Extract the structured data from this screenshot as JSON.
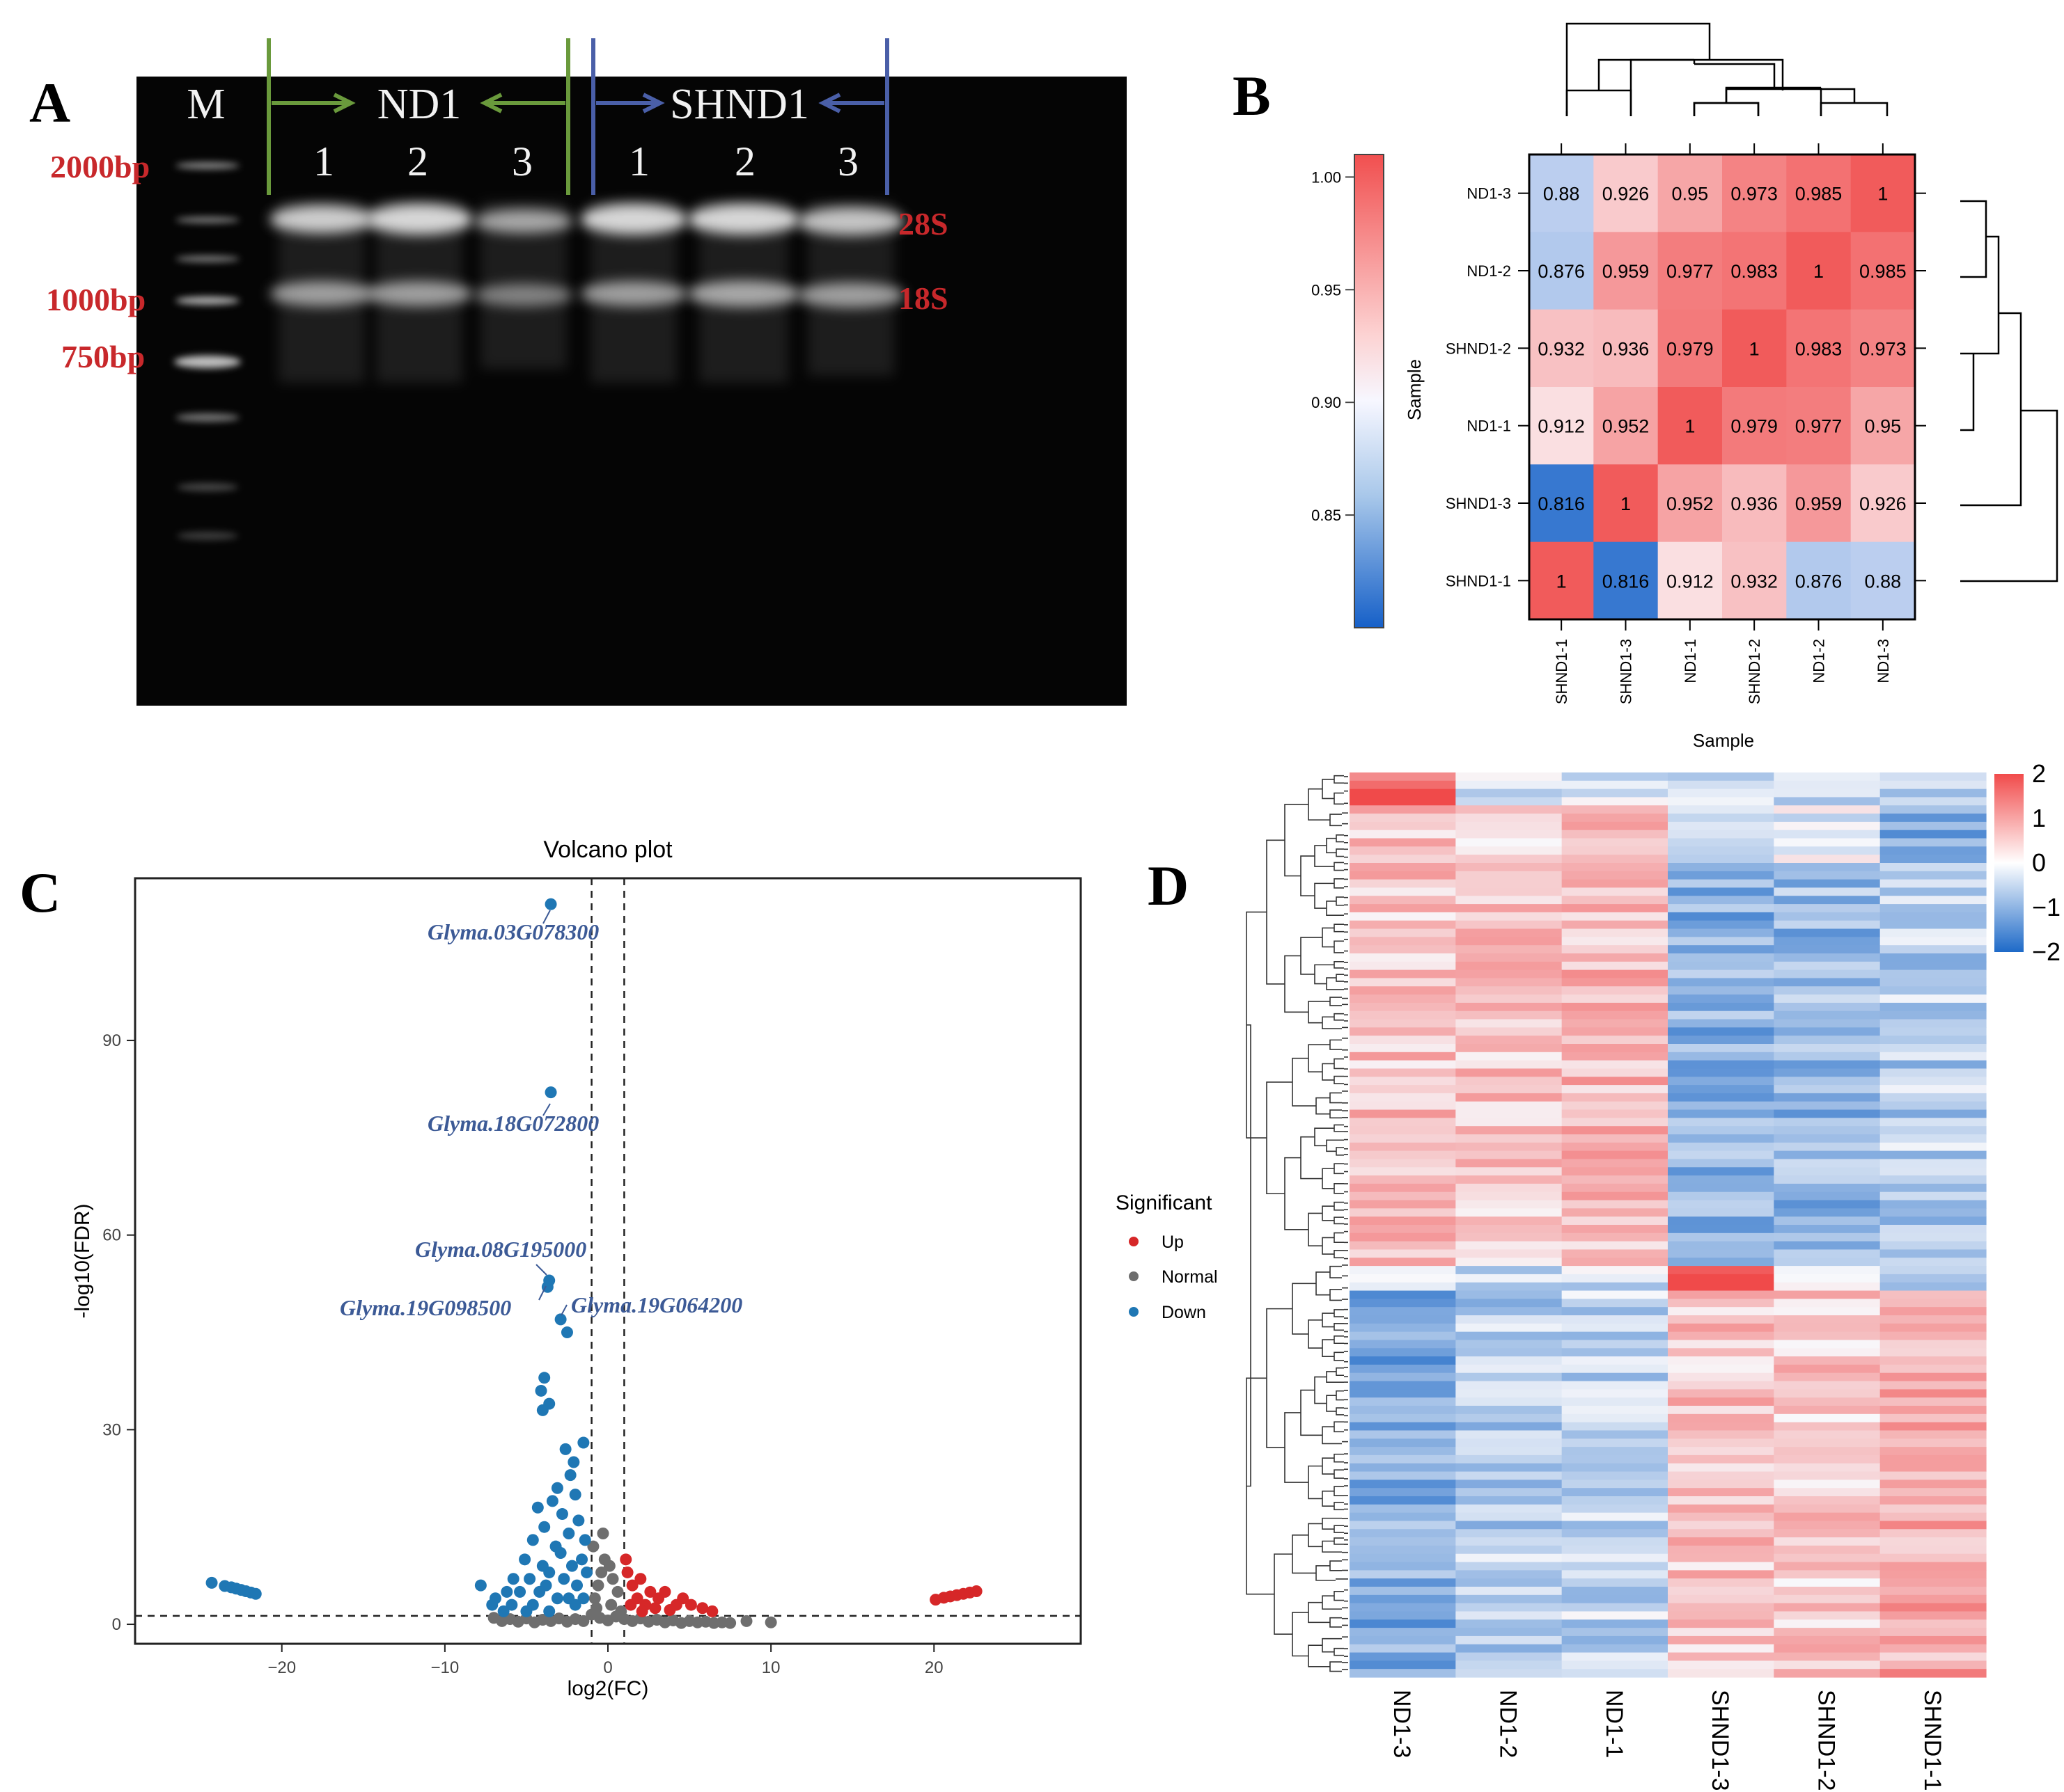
{
  "panel_labels": {
    "a": "A",
    "b": "B",
    "c": "C",
    "d": "D"
  },
  "panel_a": {
    "lane_m": "M",
    "group1": "ND1",
    "group2": "SHND1",
    "lanes": [
      "1",
      "2",
      "3",
      "1",
      "2",
      "3"
    ],
    "ladder": [
      "2000bp",
      "1000bp",
      "750bp"
    ],
    "bands": [
      "28S",
      "18S"
    ],
    "colors": {
      "group1_arrow": "#6a9a3c",
      "group2_arrow": "#4a5fa8",
      "marker_text": "#c8282b"
    }
  },
  "panel_b": {
    "rows": [
      "ND1-3",
      "ND1-2",
      "SHND1-2",
      "ND1-1",
      "SHND1-3",
      "SHND1-1"
    ],
    "cols": [
      "SHND1-1",
      "SHND1-3",
      "ND1-1",
      "SHND1-2",
      "ND1-2",
      "ND1-3"
    ],
    "matrix": [
      [
        "0.88",
        "0.926",
        "0.95",
        "0.973",
        "0.985",
        "1"
      ],
      [
        "0.876",
        "0.959",
        "0.977",
        "0.983",
        "1",
        "0.985"
      ],
      [
        "0.932",
        "0.936",
        "0.979",
        "1",
        "0.983",
        "0.973"
      ],
      [
        "0.912",
        "0.952",
        "1",
        "0.979",
        "0.977",
        "0.95"
      ],
      [
        "0.816",
        "1",
        "0.952",
        "0.936",
        "0.959",
        "0.926"
      ],
      [
        "1",
        "0.816",
        "0.912",
        "0.932",
        "0.876",
        "0.88"
      ]
    ],
    "colorbar_ticks": [
      "1.00",
      "0.95",
      "0.90",
      "0.85"
    ],
    "colorbar_range": [
      0.8,
      1.01
    ],
    "xlabel": "Sample",
    "ylabel": "Sample"
  },
  "panel_c": {
    "title": "Volcano plot",
    "xlabel": "log2(FC)",
    "ylabel": "-log10(FDR)",
    "xticks": [
      "−20",
      "−10",
      "0",
      "10",
      "20"
    ],
    "yticks": [
      "0",
      "30",
      "60",
      "90"
    ],
    "legend_title": "Significant",
    "legend": [
      "Up",
      "Normal",
      "Down"
    ],
    "colors": {
      "up": "#d62728",
      "normal": "#6e6e6e",
      "down": "#1f77b4",
      "gene_label": "#3c5a96"
    },
    "genes": [
      "Glyma.03G078300",
      "Glyma.18G072800",
      "Glyma.08G195000",
      "Glyma.19G098500",
      "Glyma.19G064200"
    ]
  },
  "panel_d": {
    "columns": [
      "ND1-3",
      "ND1-2",
      "ND1-1",
      "SHND1-3",
      "SHND1-2",
      "SHND1-1"
    ],
    "scale_ticks": [
      "2",
      "1",
      "0",
      "−1",
      "−2"
    ]
  },
  "chart_data": [
    {
      "type": "heatmap",
      "title": "",
      "xlabel": "Sample",
      "ylabel": "Sample",
      "x": [
        "SHND1-1",
        "SHND1-3",
        "ND1-1",
        "SHND1-2",
        "ND1-2",
        "ND1-3"
      ],
      "y": [
        "ND1-3",
        "ND1-2",
        "SHND1-2",
        "ND1-1",
        "SHND1-3",
        "SHND1-1"
      ],
      "values": [
        [
          0.88,
          0.926,
          0.95,
          0.973,
          0.985,
          1
        ],
        [
          0.876,
          0.959,
          0.977,
          0.983,
          1,
          0.985
        ],
        [
          0.932,
          0.936,
          0.979,
          1,
          0.983,
          0.973
        ],
        [
          0.912,
          0.952,
          1,
          0.979,
          0.977,
          0.95
        ],
        [
          0.816,
          1,
          0.952,
          0.936,
          0.959,
          0.926
        ],
        [
          1,
          0.816,
          0.912,
          0.932,
          0.876,
          0.88
        ]
      ]
    },
    {
      "type": "scatter",
      "title": "Volcano plot",
      "xlabel": "log2(FC)",
      "ylabel": "-log10(FDR)",
      "xlim": [
        -29,
        29
      ],
      "ylim": [
        -3,
        115
      ],
      "thresholds": {
        "x": [
          -1,
          1
        ],
        "y": 1.3
      },
      "series": [
        {
          "name": "Down",
          "points": [
            [
              -24.3,
              6.4
            ],
            [
              -23.5,
              5.9
            ],
            [
              -23.1,
              5.7
            ],
            [
              -22.8,
              5.5
            ],
            [
              -22.5,
              5.3
            ],
            [
              -22.2,
              5.1
            ],
            [
              -21.9,
              4.9
            ],
            [
              -21.6,
              4.7
            ],
            [
              -3.5,
              111
            ],
            [
              -3.5,
              82
            ],
            [
              -3.6,
              53
            ],
            [
              -3.7,
              52
            ],
            [
              -2.9,
              47
            ],
            [
              -2.5,
              45
            ],
            [
              -3.9,
              38
            ],
            [
              -4.1,
              36
            ],
            [
              -3.6,
              34
            ],
            [
              -4.0,
              33
            ],
            [
              -2.6,
              27
            ],
            [
              -1.5,
              28
            ],
            [
              -2.1,
              25
            ],
            [
              -2.3,
              23
            ],
            [
              -3.1,
              21
            ],
            [
              -2.0,
              20
            ],
            [
              -3.4,
              19
            ],
            [
              -4.3,
              18
            ],
            [
              -2.8,
              17
            ],
            [
              -1.8,
              16
            ],
            [
              -3.9,
              15
            ],
            [
              -2.4,
              14
            ],
            [
              -4.6,
              13
            ],
            [
              -1.4,
              13
            ],
            [
              -3.2,
              12
            ],
            [
              -2.9,
              11
            ],
            [
              -5.1,
              10
            ],
            [
              -1.6,
              10
            ],
            [
              -4.0,
              9
            ],
            [
              -2.2,
              9
            ],
            [
              -3.6,
              8
            ],
            [
              -5.8,
              7
            ],
            [
              -1.3,
              8
            ],
            [
              -4.8,
              7
            ],
            [
              -2.7,
              7
            ],
            [
              -6.2,
              5
            ],
            [
              -3.8,
              6
            ],
            [
              -1.9,
              6
            ],
            [
              -5.4,
              5
            ],
            [
              -4.2,
              5
            ],
            [
              -6.9,
              4
            ],
            [
              -2.4,
              4
            ],
            [
              -7.1,
              3
            ],
            [
              -3.1,
              4
            ],
            [
              -5.9,
              3
            ],
            [
              -1.5,
              4
            ],
            [
              -4.6,
              3
            ],
            [
              -2.0,
              3
            ],
            [
              -6.4,
              2
            ],
            [
              -3.6,
              2
            ],
            [
              -7.8,
              6
            ],
            [
              -5.0,
              2
            ]
          ]
        },
        {
          "name": "Up",
          "points": [
            [
              1.2,
              8
            ],
            [
              1.5,
              6
            ],
            [
              2.0,
              7
            ],
            [
              2.6,
              5
            ],
            [
              3.1,
              4
            ],
            [
              3.5,
              5
            ],
            [
              4.2,
              3
            ],
            [
              4.6,
              4
            ],
            [
              5.1,
              3
            ],
            [
              5.8,
              2.5
            ],
            [
              6.4,
              2
            ],
            [
              1.8,
              4
            ],
            [
              2.3,
              3
            ],
            [
              2.9,
              2.5
            ],
            [
              3.8,
              2.2
            ],
            [
              1.4,
              3
            ],
            [
              1.1,
              10
            ],
            [
              2.1,
              2
            ],
            [
              20.1,
              3.8
            ],
            [
              20.6,
              4.1
            ],
            [
              21.0,
              4.3
            ],
            [
              21.4,
              4.5
            ],
            [
              21.8,
              4.7
            ],
            [
              22.2,
              4.9
            ],
            [
              22.6,
              5.1
            ]
          ]
        },
        {
          "name": "Normal",
          "points": [
            [
              -7,
              1
            ],
            [
              -6.5,
              0.5
            ],
            [
              -6,
              0.8
            ],
            [
              -5.5,
              0.4
            ],
            [
              -5,
              0.9
            ],
            [
              -4.5,
              0.3
            ],
            [
              -4,
              0.7
            ],
            [
              -3.5,
              0.5
            ],
            [
              -3,
              0.9
            ],
            [
              -2.5,
              0.4
            ],
            [
              -2,
              0.8
            ],
            [
              -1.5,
              0.5
            ],
            [
              -1,
              1.5
            ],
            [
              -0.5,
              1
            ],
            [
              0,
              0.6
            ],
            [
              0.5,
              1.2
            ],
            [
              1,
              0.8
            ],
            [
              1.5,
              0.5
            ],
            [
              2,
              0.9
            ],
            [
              2.5,
              0.4
            ],
            [
              3,
              0.7
            ],
            [
              3.5,
              0.3
            ],
            [
              4,
              0.6
            ],
            [
              4.5,
              0.2
            ],
            [
              5,
              0.5
            ],
            [
              5.5,
              0.3
            ],
            [
              6,
              0.4
            ],
            [
              6.5,
              0.2
            ],
            [
              7,
              0.3
            ],
            [
              7.5,
              0.2
            ],
            [
              8.5,
              0.5
            ],
            [
              10,
              0.3
            ],
            [
              -0.8,
              4
            ],
            [
              -0.6,
              6
            ],
            [
              -0.4,
              8
            ],
            [
              -0.2,
              10
            ],
            [
              0.1,
              9
            ],
            [
              0.3,
              7
            ],
            [
              0.6,
              5
            ],
            [
              -0.9,
              12
            ],
            [
              -0.3,
              14
            ],
            [
              0.2,
              3
            ],
            [
              -0.7,
              2.5
            ],
            [
              0.8,
              2
            ]
          ]
        }
      ]
    },
    {
      "type": "heatmap",
      "title": "",
      "x": [
        "ND1-3",
        "ND1-2",
        "ND1-1",
        "SHND1-3",
        "SHND1-2",
        "SHND1-1"
      ],
      "colorbar_range": [
        -2,
        2
      ]
    }
  ]
}
